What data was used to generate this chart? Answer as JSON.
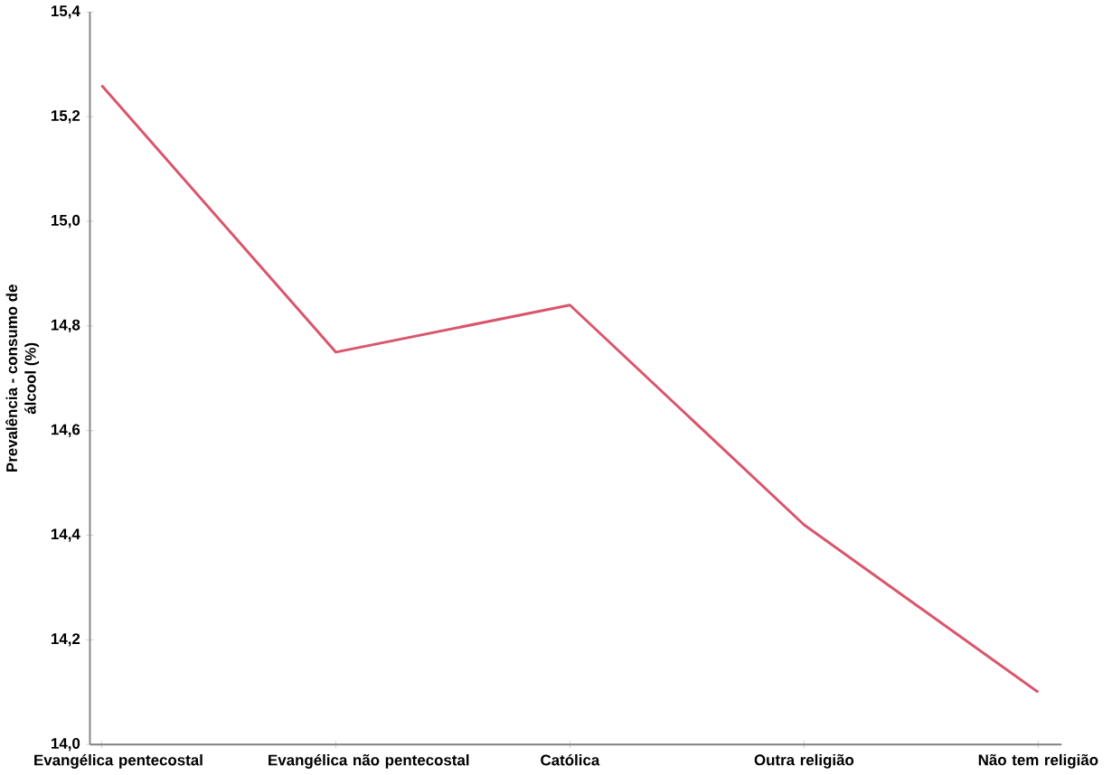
{
  "chart_data": {
    "type": "line",
    "ylabel": "Prevalência - consumo de álcool (%)",
    "categories": [
      "Evangélica pentecostal",
      "Evangélica não pentecostal",
      "Católica",
      "Outra religião",
      "Não tem religião"
    ],
    "series": [
      {
        "color": "#d9566c",
        "values": [
          15.26,
          14.75,
          14.84,
          14.42,
          14.1
        ]
      }
    ],
    "ylim": [
      14.0,
      15.4
    ],
    "yticks": [
      {
        "value": 14.0,
        "label": "14,0"
      },
      {
        "value": 14.2,
        "label": "14,2"
      },
      {
        "value": 14.4,
        "label": "14,4"
      },
      {
        "value": 14.6,
        "label": "14,6"
      },
      {
        "value": 14.8,
        "label": "14,8"
      },
      {
        "value": 15.0,
        "label": "15,0"
      },
      {
        "value": 15.2,
        "label": "15,2"
      },
      {
        "value": 15.4,
        "label": "15,4"
      }
    ],
    "grid": false,
    "marker": "none",
    "line_style": "solid"
  }
}
